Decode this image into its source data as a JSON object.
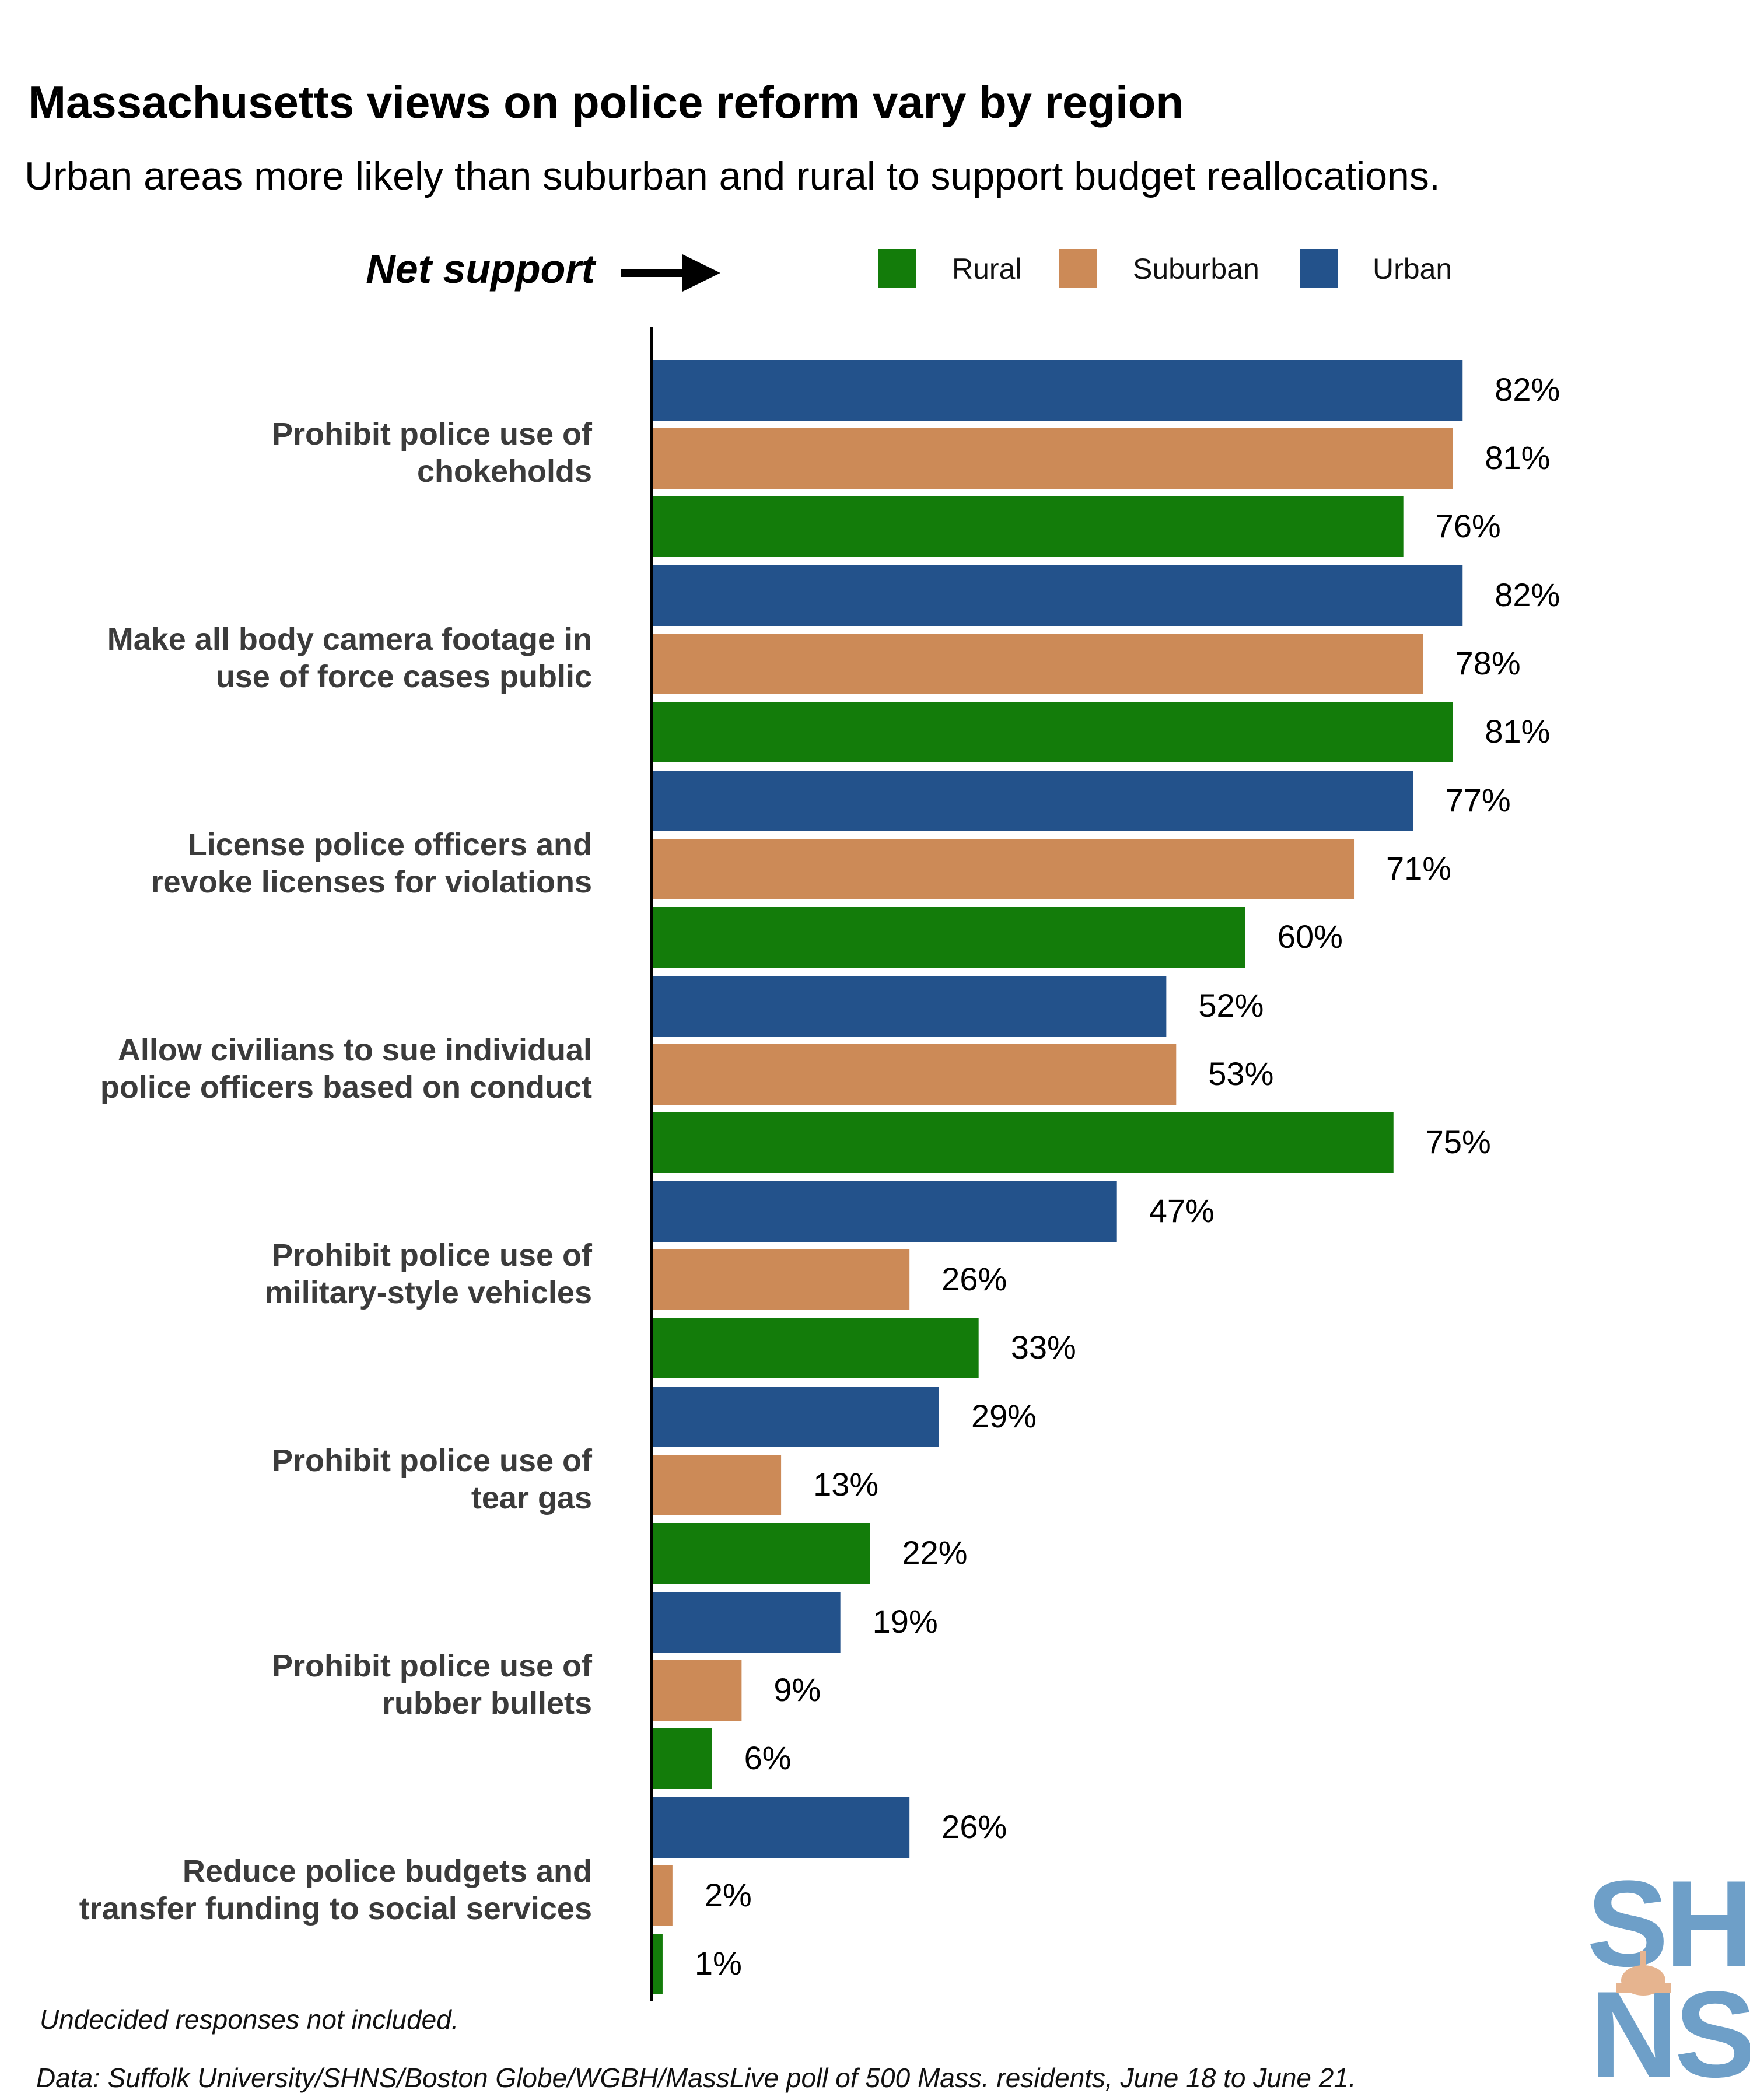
{
  "title": "Massachusetts views on police reform vary by region",
  "subtitle": "Urban areas more likely than suburban and rural to support budget reallocations.",
  "net_support_label": "Net support",
  "footnote": "Undecided responses not included.",
  "source": "Data: Suffolk University/SHNS/Boston Globe/WGBH/MassLive poll of 500 Mass. residents, June 18 to June 21.",
  "logo": {
    "line1": "SH",
    "line2": "NS"
  },
  "colors": {
    "Rural": "#137c0a",
    "Suburban": "#cc8a57",
    "Urban": "#23528b"
  },
  "chart_data": {
    "type": "bar",
    "orientation": "horizontal",
    "legend_position": "top",
    "grid": false,
    "value_suffix": "%",
    "xlim": [
      0,
      100
    ],
    "categories": [
      [
        "Prohibit police use of",
        "chokeholds"
      ],
      [
        "Make all body camera footage in",
        "use of force cases public"
      ],
      [
        "License police officers and",
        "revoke licenses for violations"
      ],
      [
        "Allow civilians to sue individual",
        "police officers based on conduct"
      ],
      [
        "Prohibit police use of",
        "military-style vehicles"
      ],
      [
        "Prohibit police use of",
        "tear gas"
      ],
      [
        "Prohibit police use of",
        "rubber bullets"
      ],
      [
        "Reduce police budgets and",
        "transfer funding to social services"
      ]
    ],
    "legend": [
      "Rural",
      "Suburban",
      "Urban"
    ],
    "series": [
      {
        "name": "Urban",
        "values": [
          82,
          82,
          77,
          52,
          47,
          29,
          19,
          26
        ]
      },
      {
        "name": "Suburban",
        "values": [
          81,
          78,
          71,
          53,
          26,
          13,
          9,
          2
        ]
      },
      {
        "name": "Rural",
        "values": [
          76,
          81,
          60,
          75,
          33,
          22,
          6,
          1
        ]
      }
    ]
  }
}
